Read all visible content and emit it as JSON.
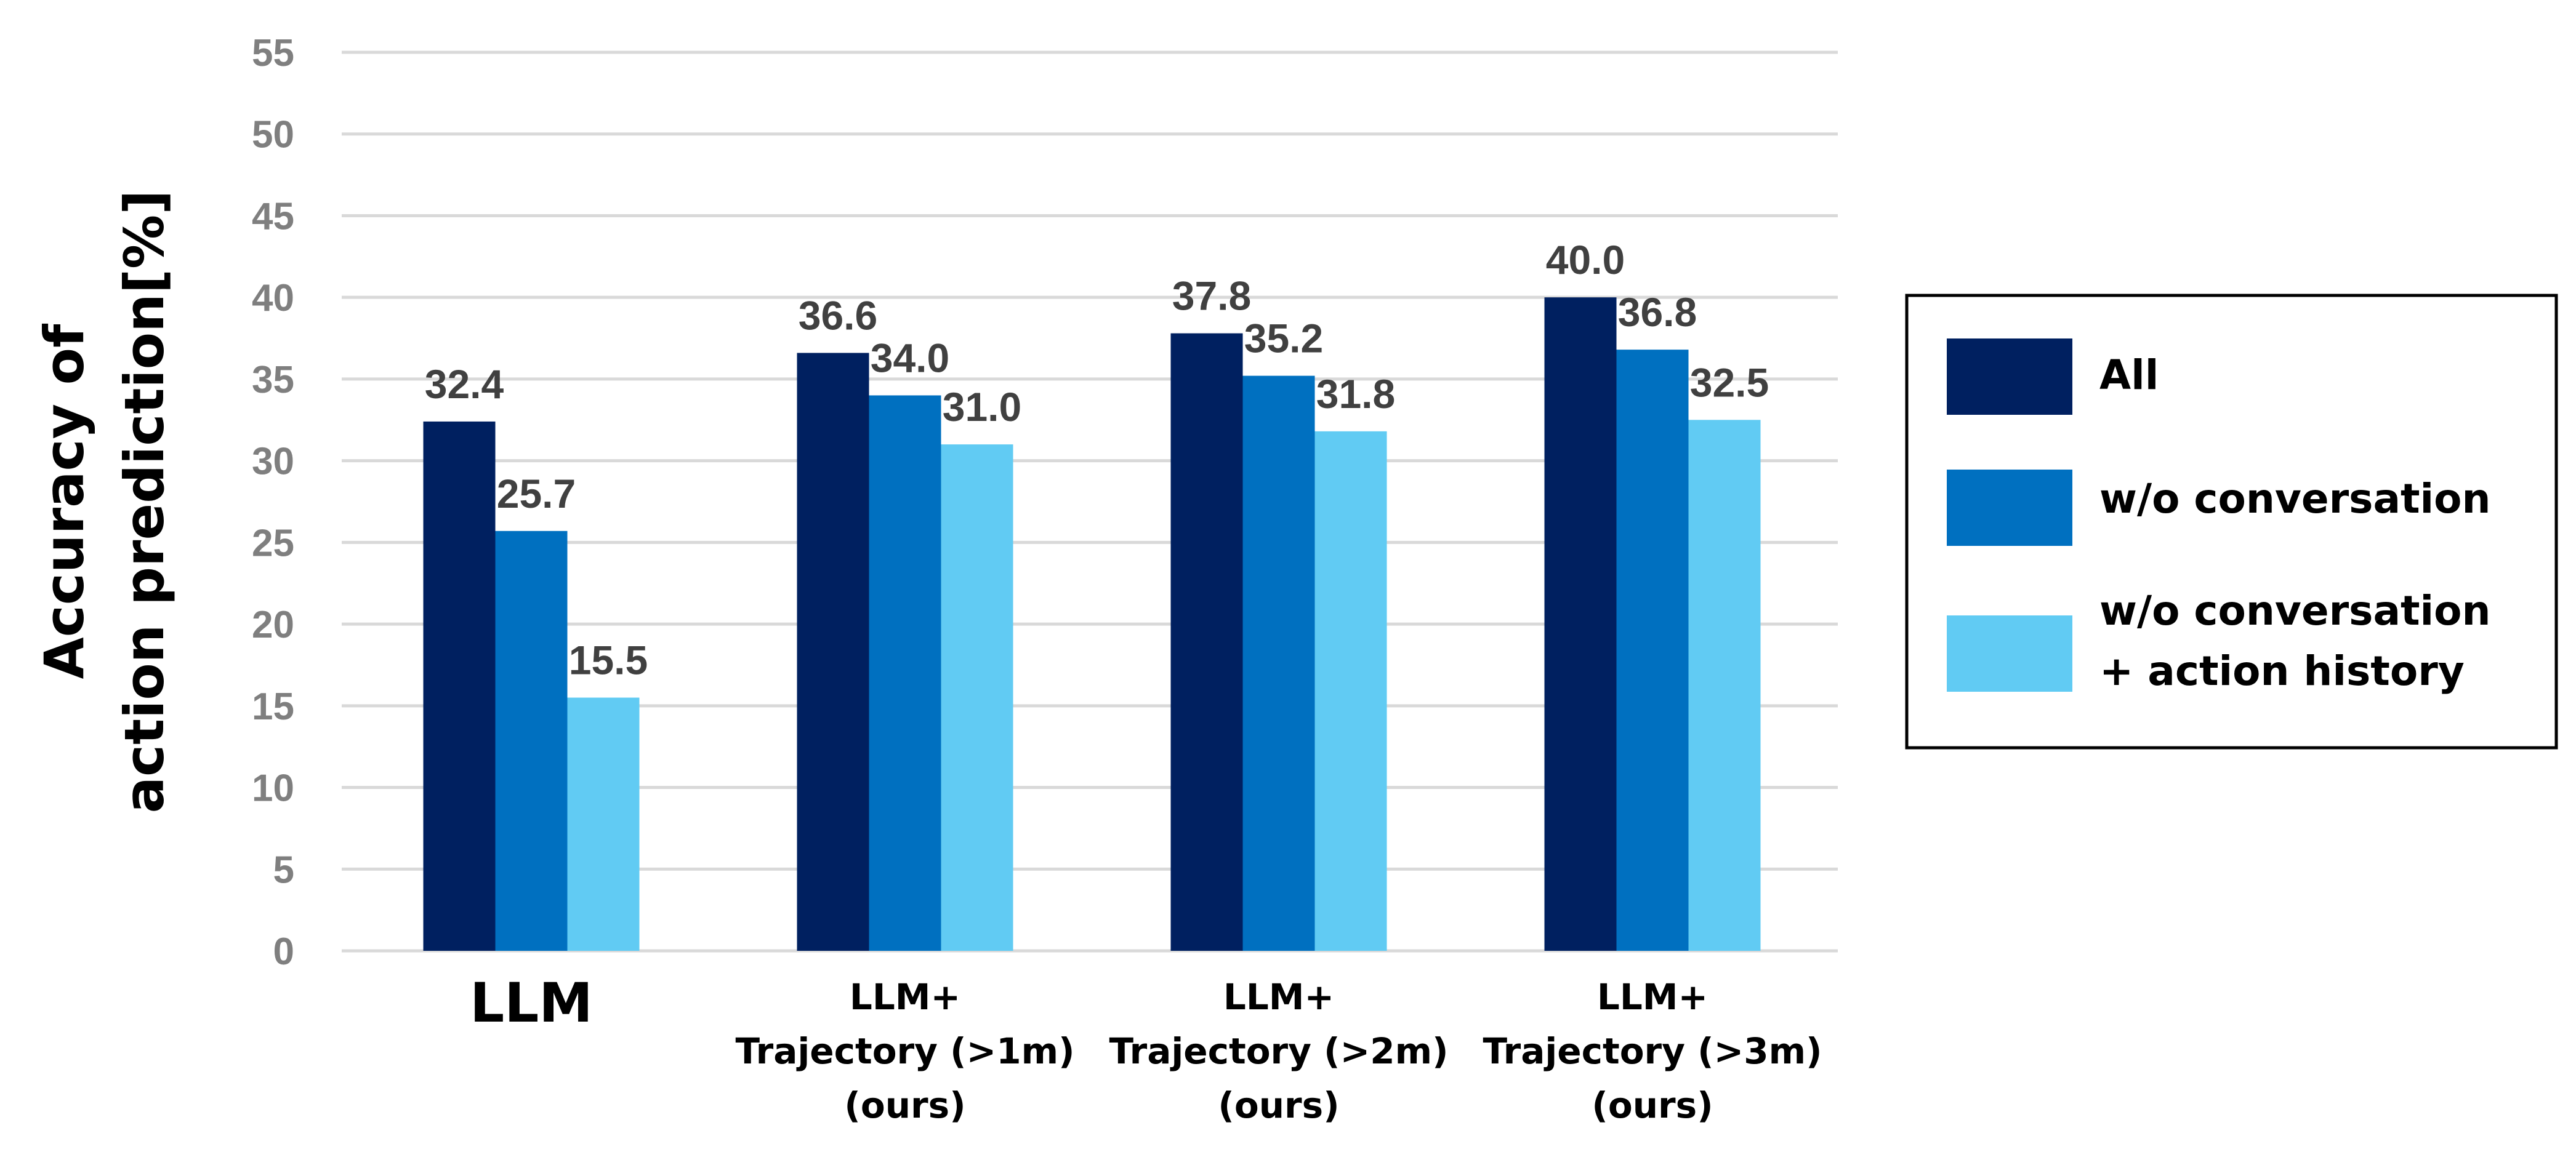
{
  "chart_data": {
    "type": "bar",
    "title": "",
    "xlabel": "",
    "ylabel": [
      "Accuracy of",
      "action prediction[%]"
    ],
    "ylim": [
      0,
      55
    ],
    "yticks": [
      0,
      5,
      10,
      15,
      20,
      25,
      30,
      35,
      40,
      45,
      50,
      55
    ],
    "grid": true,
    "legend_position": "right",
    "categories": [
      [
        "LLM"
      ],
      [
        "LLM+",
        "Trajectory (>1m)",
        "(ours)"
      ],
      [
        "LLM+",
        "Trajectory (>2m)",
        "(ours)"
      ],
      [
        "LLM+",
        "Trajectory (>3m)",
        "(ours)"
      ]
    ],
    "series": [
      {
        "name": [
          "All"
        ],
        "color": "#002060",
        "values": [
          32.4,
          36.6,
          37.8,
          40.0
        ],
        "labels": [
          "32.4",
          "36.6",
          "37.8",
          "40.0"
        ]
      },
      {
        "name": [
          "w/o conversation"
        ],
        "color": "#0070C0",
        "values": [
          25.7,
          34.0,
          35.2,
          36.8
        ],
        "labels": [
          "25.7",
          "34.0",
          "35.2",
          "36.8"
        ]
      },
      {
        "name": [
          "w/o conversation",
          "+ action history"
        ],
        "color": "#61CBF3",
        "values": [
          15.5,
          31.0,
          31.8,
          32.5
        ],
        "labels": [
          "15.5",
          "31.0",
          "31.8",
          "32.5"
        ]
      }
    ]
  }
}
